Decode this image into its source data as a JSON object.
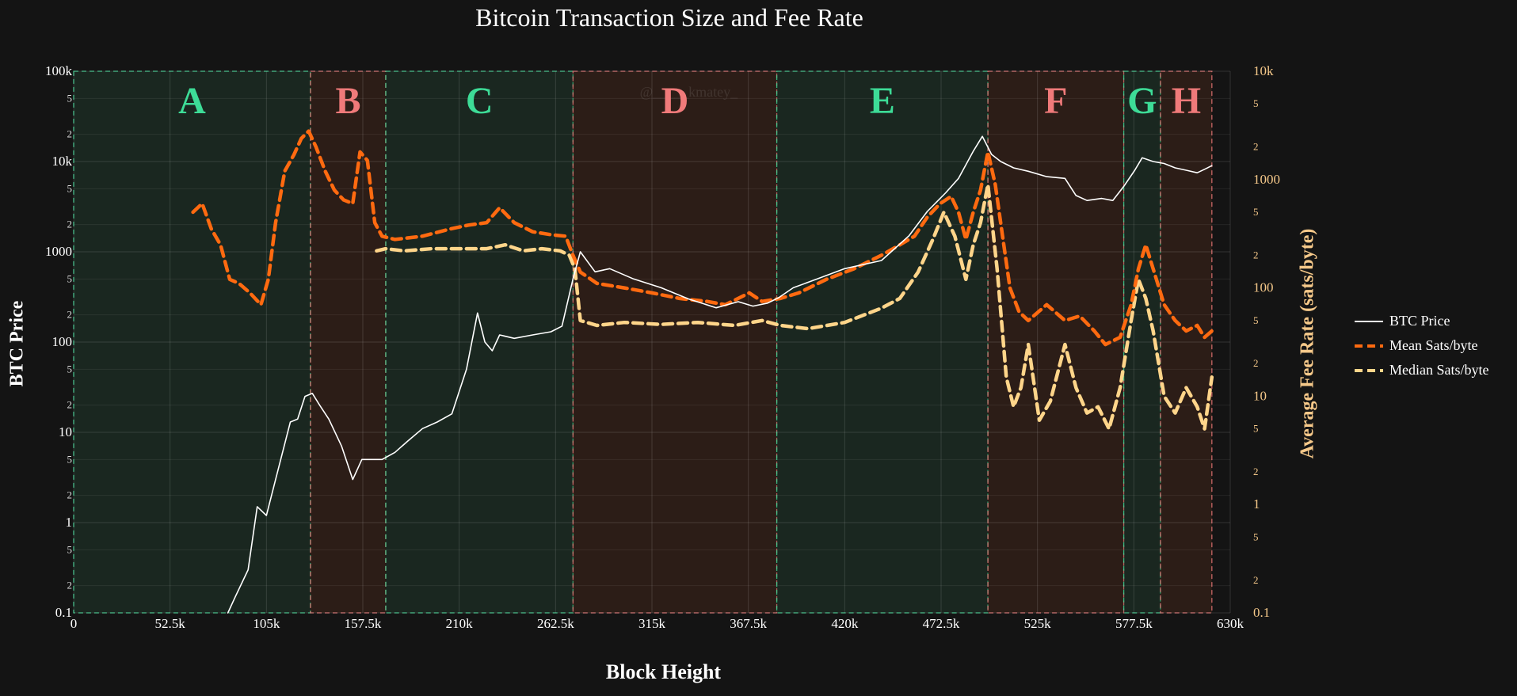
{
  "chart_data": {
    "type": "line",
    "title": "Bitcoin Transaction Size and Fee Rate",
    "xlabel": "Block Height",
    "ylabel": "BTC Price",
    "y2label": "Average Fee Rate (sats/byte)",
    "x_ticks": [
      "0",
      "52.5k",
      "105k",
      "157.5k",
      "210k",
      "262.5k",
      "315k",
      "367.5k",
      "420k",
      "472.5k",
      "525k",
      "577.5k",
      "630k"
    ],
    "x_range": [
      0,
      630000
    ],
    "y_scale": "log",
    "y_range": [
      0.1,
      100000
    ],
    "y_ticks_major": [
      "0.1",
      "1",
      "10",
      "100",
      "1000",
      "10k",
      "100k"
    ],
    "y_ticks_minor": [
      "2",
      "5"
    ],
    "y2_scale": "log",
    "y2_range": [
      0.1,
      10000
    ],
    "y2_ticks_major": [
      "0.1",
      "1",
      "10",
      "100",
      "1000",
      "10k"
    ],
    "y2_ticks_minor": [
      "2",
      "5"
    ],
    "watermark": "@_____kmatey_",
    "colors": {
      "background": "#141414",
      "green_region": "#3ddc97",
      "red_region": "#f07a7a",
      "btc_price": "#ffffff",
      "mean": "#ff6a10",
      "median": "#ffd58a",
      "y2_axis": "#f6c98a"
    },
    "regions": [
      {
        "label": "A",
        "start": 0,
        "end": 129000,
        "kind": "green"
      },
      {
        "label": "B",
        "start": 129000,
        "end": 170000,
        "kind": "red"
      },
      {
        "label": "C",
        "start": 170000,
        "end": 272000,
        "kind": "green"
      },
      {
        "label": "D",
        "start": 272000,
        "end": 383000,
        "kind": "red"
      },
      {
        "label": "E",
        "start": 383000,
        "end": 498000,
        "kind": "green"
      },
      {
        "label": "F",
        "start": 498000,
        "end": 572000,
        "kind": "red"
      },
      {
        "label": "G",
        "start": 572000,
        "end": 592000,
        "kind": "green"
      },
      {
        "label": "H",
        "start": 592000,
        "end": 620000,
        "kind": "red"
      }
    ],
    "series": [
      {
        "name": "BTC Price",
        "axis": "y",
        "style": "solid",
        "x": [
          84000,
          88000,
          95000,
          100000,
          105000,
          110000,
          118000,
          122000,
          126000,
          130000,
          134000,
          139000,
          146000,
          152000,
          157000,
          162000,
          168000,
          175000,
          182000,
          190000,
          198000,
          206000,
          214000,
          220000,
          224000,
          228000,
          232000,
          240000,
          250000,
          260000,
          266000,
          272000,
          276000,
          284000,
          292000,
          305000,
          320000,
          335000,
          350000,
          362000,
          370000,
          378000,
          384000,
          392000,
          405000,
          420000,
          440000,
          455000,
          465000,
          475000,
          482000,
          490000,
          495000,
          500000,
          505000,
          512000,
          520000,
          530000,
          540000,
          546000,
          552000,
          560000,
          566000,
          572000,
          578000,
          582000,
          588000,
          594000,
          600000,
          606000,
          612000,
          616000,
          620000
        ],
        "y": [
          0.1,
          0.15,
          0.3,
          1.5,
          1.2,
          3,
          13,
          14,
          25,
          27,
          20,
          14,
          7,
          3,
          5,
          5,
          5,
          6,
          8,
          11,
          13,
          16,
          50,
          210,
          100,
          80,
          120,
          110,
          120,
          130,
          150,
          500,
          1000,
          600,
          650,
          500,
          400,
          300,
          240,
          280,
          250,
          270,
          310,
          400,
          500,
          650,
          800,
          1500,
          2800,
          4500,
          6500,
          13000,
          19000,
          12000,
          10000,
          8500,
          7800,
          6800,
          6500,
          4200,
          3700,
          3900,
          3700,
          5300,
          8000,
          11000,
          10000,
          9500,
          8500,
          8000,
          7500,
          8200,
          9000
        ]
      },
      {
        "name": "Mean Sats/byte",
        "axis": "y2",
        "style": "dashed",
        "x": [
          65000,
          70000,
          75000,
          80000,
          85000,
          90000,
          96000,
          102000,
          106000,
          110000,
          115000,
          120000,
          124000,
          128000,
          132000,
          137000,
          142000,
          147000,
          152000,
          156000,
          160000,
          164000,
          168000,
          175000,
          190000,
          205000,
          215000,
          225000,
          232000,
          240000,
          250000,
          260000,
          268000,
          272000,
          276000,
          285000,
          300000,
          315000,
          330000,
          345000,
          355000,
          362000,
          368000,
          375000,
          385000,
          395000,
          410000,
          425000,
          440000,
          450000,
          458000,
          465000,
          472000,
          478000,
          482000,
          486000,
          490000,
          494000,
          498000,
          502000,
          506000,
          510000,
          515000,
          520000,
          530000,
          540000,
          548000,
          556000,
          562000,
          570000,
          576000,
          580000,
          584000,
          588000,
          594000,
          600000,
          606000,
          612000,
          616000,
          620000
        ],
        "y": [
          500,
          600,
          350,
          250,
          120,
          110,
          90,
          70,
          120,
          400,
          1200,
          1700,
          2400,
          2800,
          2000,
          1200,
          800,
          650,
          600,
          1800,
          1500,
          400,
          300,
          280,
          300,
          350,
          380,
          400,
          550,
          400,
          330,
          310,
          300,
          200,
          140,
          110,
          100,
          90,
          80,
          75,
          70,
          80,
          90,
          75,
          80,
          90,
          120,
          150,
          200,
          250,
          300,
          450,
          600,
          700,
          500,
          280,
          500,
          800,
          1800,
          900,
          300,
          100,
          60,
          50,
          70,
          50,
          55,
          40,
          30,
          35,
          70,
          150,
          250,
          150,
          70,
          50,
          40,
          45,
          35,
          40
        ]
      },
      {
        "name": "Median Sats/byte",
        "axis": "y2",
        "style": "dashed",
        "x": [
          165000,
          170000,
          180000,
          195000,
          210000,
          225000,
          235000,
          245000,
          255000,
          265000,
          270000,
          273000,
          276000,
          285000,
          300000,
          320000,
          340000,
          360000,
          375000,
          385000,
          400000,
          420000,
          440000,
          450000,
          460000,
          468000,
          474000,
          480000,
          486000,
          490000,
          494000,
          498000,
          503000,
          508000,
          512000,
          516000,
          520000,
          526000,
          532000,
          540000,
          546000,
          552000,
          558000,
          564000,
          570000,
          576000,
          580000,
          584000,
          588000,
          594000,
          600000,
          606000,
          612000,
          616000,
          620000
        ],
        "y": [
          220,
          230,
          220,
          230,
          230,
          230,
          250,
          220,
          230,
          220,
          200,
          150,
          50,
          45,
          48,
          46,
          48,
          45,
          50,
          45,
          42,
          48,
          65,
          80,
          140,
          280,
          500,
          300,
          120,
          250,
          400,
          900,
          150,
          15,
          8,
          12,
          30,
          6,
          9,
          30,
          12,
          7,
          8,
          5,
          12,
          50,
          120,
          80,
          40,
          10,
          7,
          12,
          8,
          5,
          15
        ]
      }
    ],
    "legend": {
      "placement": "right",
      "entries": [
        "BTC Price",
        "Mean Sats/byte",
        "Median Sats/byte"
      ]
    }
  }
}
